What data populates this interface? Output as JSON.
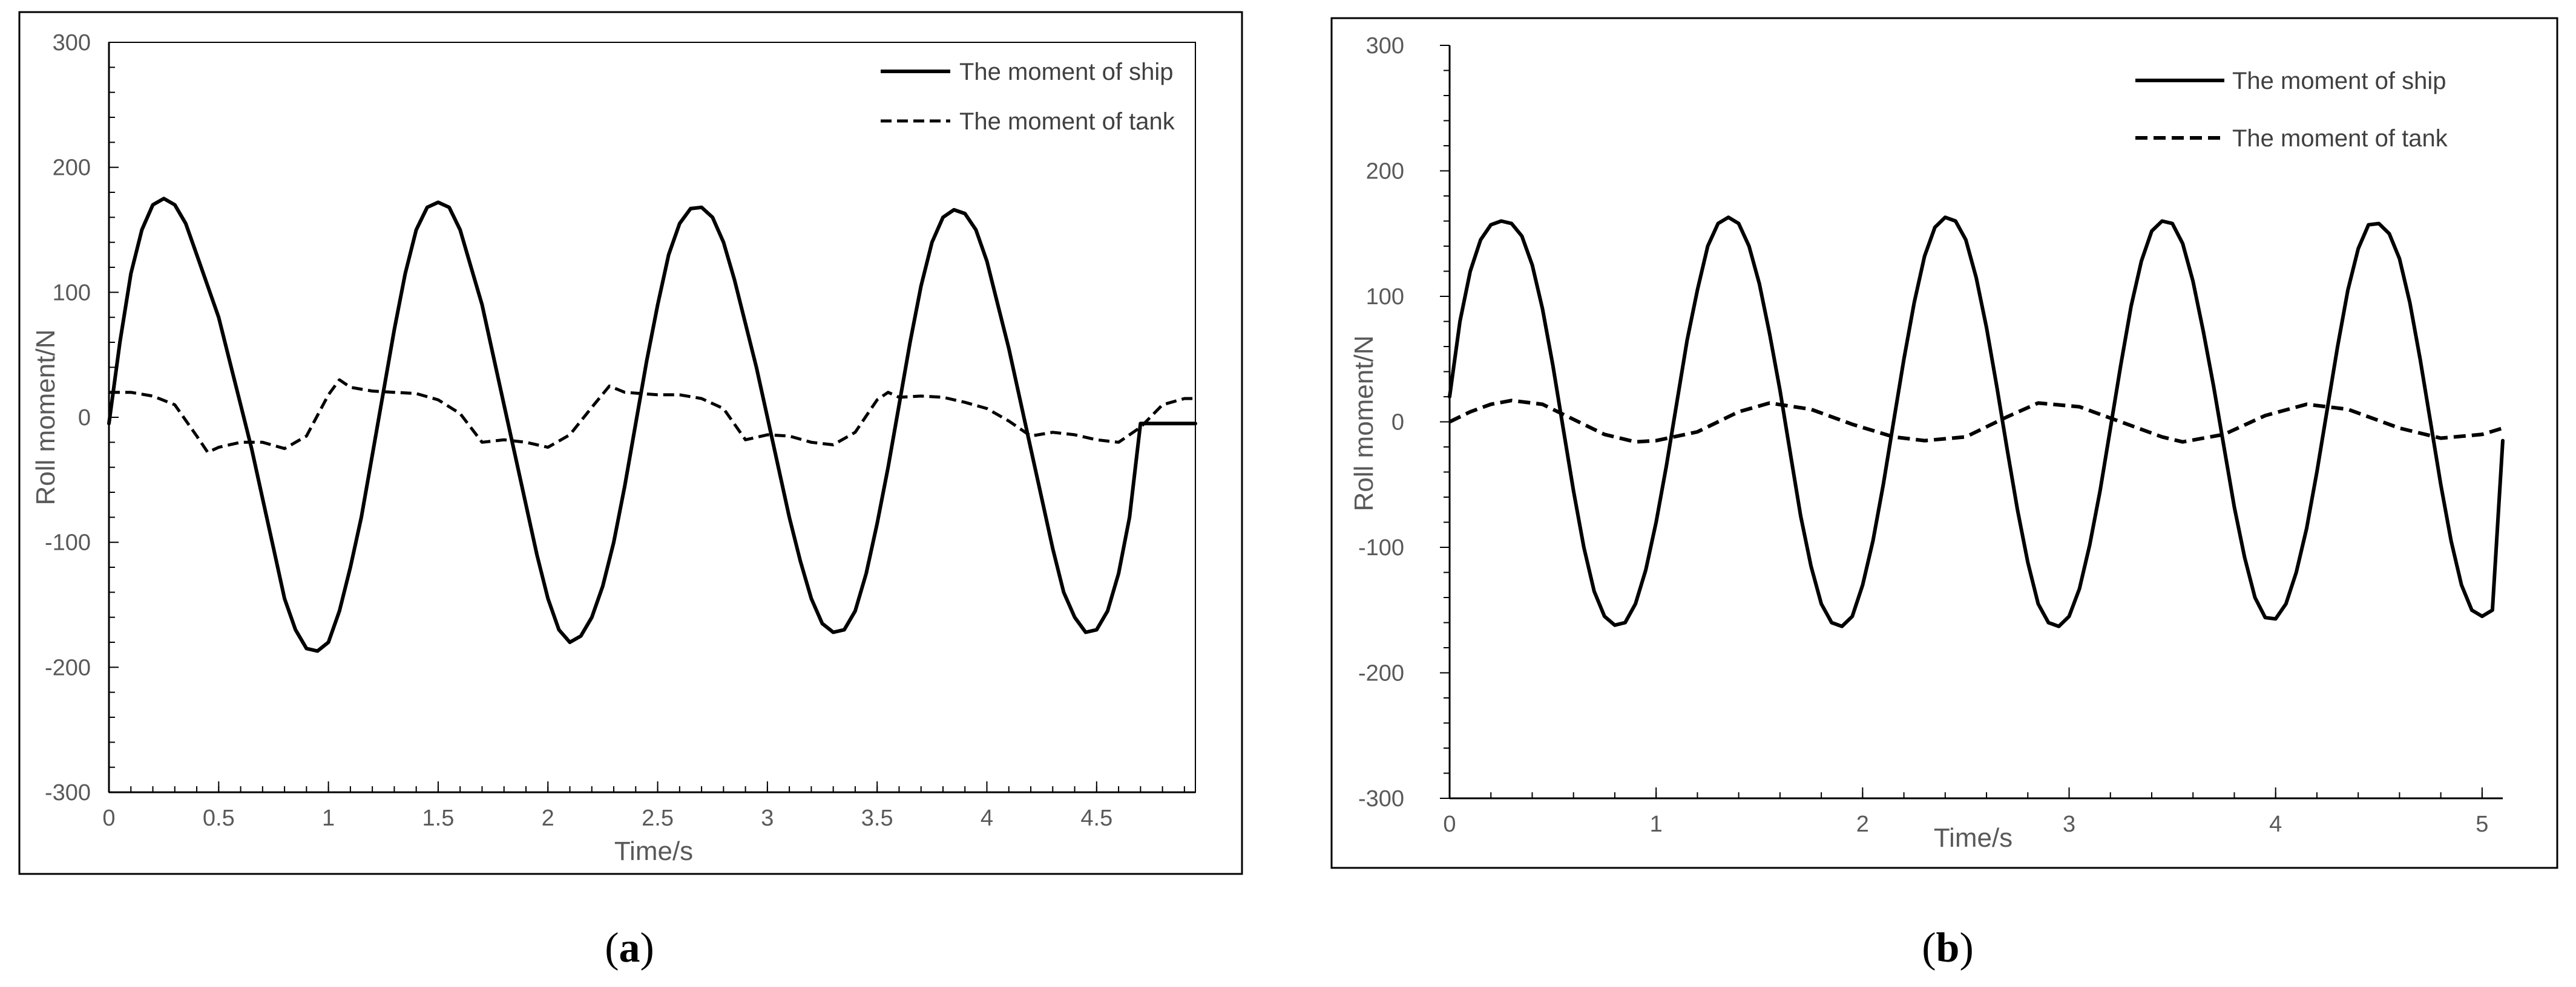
{
  "chart_data": [
    {
      "type": "line",
      "panel_label": "a",
      "xlabel": "Time/s",
      "ylabel": "Roll moment/N",
      "xlim": [
        0,
        4.95
      ],
      "ylim": [
        -300,
        300
      ],
      "xticks": [
        "0",
        "0.5",
        "1",
        "1.5",
        "2",
        "2.5",
        "3",
        "3.5",
        "4",
        "4.5"
      ],
      "yticks": [
        "300",
        "200",
        "100",
        "0",
        "-100",
        "-200",
        "-300"
      ],
      "grid": false,
      "legend_position": "top-right",
      "series": [
        {
          "name": "The moment of ship",
          "style": "solid",
          "x": [
            0,
            0.05,
            0.1,
            0.15,
            0.2,
            0.25,
            0.3,
            0.35,
            0.4,
            0.45,
            0.5,
            0.55,
            0.6,
            0.65,
            0.7,
            0.75,
            0.8,
            0.85,
            0.9,
            0.95,
            1.0,
            1.05,
            1.1,
            1.15,
            1.2,
            1.25,
            1.3,
            1.35,
            1.4,
            1.45,
            1.5,
            1.55,
            1.6,
            1.65,
            1.7,
            1.75,
            1.8,
            1.85,
            1.9,
            1.95,
            2.0,
            2.05,
            2.1,
            2.15,
            2.2,
            2.25,
            2.3,
            2.35,
            2.4,
            2.45,
            2.5,
            2.55,
            2.6,
            2.65,
            2.7,
            2.75,
            2.8,
            2.85,
            2.9,
            2.95,
            3.0,
            3.05,
            3.1,
            3.15,
            3.2,
            3.25,
            3.3,
            3.35,
            3.4,
            3.45,
            3.5,
            3.55,
            3.6,
            3.65,
            3.7,
            3.75,
            3.8,
            3.85,
            3.9,
            3.95,
            4.0,
            4.05,
            4.1,
            4.15,
            4.2,
            4.25,
            4.3,
            4.35,
            4.4,
            4.45,
            4.5,
            4.55,
            4.6,
            4.65,
            4.7,
            4.75,
            4.8,
            4.85,
            4.9,
            4.95
          ],
          "y": [
            -5,
            60,
            115,
            150,
            170,
            175,
            170,
            155,
            130,
            105,
            80,
            45,
            10,
            -25,
            -65,
            -105,
            -145,
            -170,
            -185,
            -187,
            -180,
            -155,
            -120,
            -80,
            -30,
            20,
            70,
            115,
            150,
            168,
            172,
            168,
            150,
            120,
            90,
            50,
            10,
            -30,
            -70,
            -110,
            -145,
            -170,
            -180,
            -175,
            -160,
            -135,
            -100,
            -55,
            -5,
            45,
            90,
            130,
            155,
            167,
            168,
            160,
            140,
            110,
            75,
            40,
            0,
            -40,
            -80,
            -115,
            -145,
            -165,
            -172,
            -170,
            -155,
            -125,
            -85,
            -40,
            10,
            60,
            105,
            140,
            160,
            166,
            163,
            150,
            125,
            90,
            55,
            15,
            -25,
            -65,
            -105,
            -140,
            -160,
            -172,
            -170,
            -155,
            -125,
            -80,
            -5,
            -5,
            -5,
            -5,
            -5,
            -5
          ]
        },
        {
          "name": "The moment of tank",
          "style": "dashed",
          "x": [
            0,
            0.1,
            0.2,
            0.3,
            0.4,
            0.45,
            0.5,
            0.6,
            0.7,
            0.8,
            0.9,
            1.0,
            1.05,
            1.1,
            1.2,
            1.3,
            1.4,
            1.5,
            1.6,
            1.7,
            1.8,
            1.9,
            2.0,
            2.1,
            2.2,
            2.28,
            2.35,
            2.5,
            2.6,
            2.7,
            2.8,
            2.9,
            3.0,
            3.1,
            3.2,
            3.3,
            3.4,
            3.5,
            3.55,
            3.6,
            3.7,
            3.8,
            3.9,
            4.0,
            4.1,
            4.2,
            4.3,
            4.4,
            4.5,
            4.6,
            4.7,
            4.8,
            4.9,
            4.95
          ],
          "y": [
            20,
            20,
            17,
            10,
            -15,
            -28,
            -24,
            -20,
            -20,
            -25,
            -15,
            18,
            30,
            24,
            21,
            20,
            19,
            14,
            3,
            -20,
            -18,
            -20,
            -24,
            -14,
            8,
            25,
            20,
            18,
            18,
            15,
            7,
            -18,
            -14,
            -15,
            -20,
            -22,
            -12,
            14,
            20,
            16,
            17,
            16,
            12,
            7,
            -3,
            -15,
            -12,
            -14,
            -18,
            -20,
            -8,
            10,
            15,
            15
          ]
        }
      ]
    },
    {
      "type": "line",
      "panel_label": "b",
      "xlabel": "Time/s",
      "ylabel": "Roll moment/N",
      "xlim": [
        0,
        5.1
      ],
      "ylim": [
        -300,
        300
      ],
      "xticks": [
        "0",
        "1",
        "2",
        "3",
        "4",
        "5"
      ],
      "yticks": [
        "300",
        "200",
        "100",
        "0",
        "-100",
        "-200",
        "-300"
      ],
      "grid": false,
      "legend_position": "top-right",
      "series": [
        {
          "name": "The moment of ship",
          "style": "solid",
          "x": [
            0,
            0.05,
            0.1,
            0.15,
            0.2,
            0.25,
            0.3,
            0.35,
            0.4,
            0.45,
            0.5,
            0.55,
            0.6,
            0.65,
            0.7,
            0.75,
            0.8,
            0.85,
            0.9,
            0.95,
            1.0,
            1.05,
            1.1,
            1.15,
            1.2,
            1.25,
            1.3,
            1.35,
            1.4,
            1.45,
            1.5,
            1.55,
            1.6,
            1.65,
            1.7,
            1.75,
            1.8,
            1.85,
            1.9,
            1.95,
            2.0,
            2.05,
            2.1,
            2.15,
            2.2,
            2.25,
            2.3,
            2.35,
            2.4,
            2.45,
            2.5,
            2.55,
            2.6,
            2.65,
            2.7,
            2.75,
            2.8,
            2.85,
            2.9,
            2.95,
            3.0,
            3.05,
            3.1,
            3.15,
            3.2,
            3.25,
            3.3,
            3.35,
            3.4,
            3.45,
            3.5,
            3.55,
            3.6,
            3.65,
            3.7,
            3.75,
            3.8,
            3.85,
            3.9,
            3.95,
            4.0,
            4.05,
            4.1,
            4.15,
            4.2,
            4.25,
            4.3,
            4.35,
            4.4,
            4.45,
            4.5,
            4.55,
            4.6,
            4.65,
            4.7,
            4.75,
            4.8,
            4.85,
            4.9,
            4.95,
            5.0,
            5.05,
            5.1
          ],
          "y": [
            20,
            80,
            120,
            145,
            157,
            160,
            158,
            148,
            125,
            90,
            45,
            -5,
            -55,
            -100,
            -135,
            -155,
            -162,
            -160,
            -145,
            -118,
            -80,
            -35,
            15,
            65,
            105,
            140,
            158,
            163,
            158,
            140,
            110,
            70,
            25,
            -25,
            -75,
            -115,
            -145,
            -160,
            -163,
            -155,
            -130,
            -95,
            -50,
            0,
            50,
            95,
            132,
            155,
            163,
            160,
            145,
            115,
            75,
            28,
            -22,
            -70,
            -112,
            -145,
            -160,
            -163,
            -155,
            -133,
            -98,
            -55,
            -5,
            45,
            92,
            128,
            152,
            160,
            158,
            142,
            112,
            72,
            28,
            -20,
            -68,
            -108,
            -140,
            -156,
            -157,
            -145,
            -120,
            -85,
            -40,
            10,
            60,
            105,
            138,
            157,
            158,
            150,
            130,
            95,
            50,
            0,
            -50,
            -95,
            -130,
            -150,
            -155,
            -150,
            -15
          ]
        },
        {
          "name": "The moment of tank",
          "style": "dashed",
          "x": [
            0,
            0.1,
            0.2,
            0.3,
            0.45,
            0.6,
            0.75,
            0.9,
            1.0,
            1.2,
            1.4,
            1.55,
            1.75,
            1.95,
            2.15,
            2.3,
            2.5,
            2.7,
            2.85,
            3.05,
            3.25,
            3.45,
            3.55,
            3.75,
            3.95,
            4.15,
            4.35,
            4.6,
            4.8,
            5.0,
            5.1
          ],
          "y": [
            0,
            8,
            14,
            17,
            14,
            2,
            -10,
            -16,
            -15,
            -8,
            8,
            15,
            10,
            -2,
            -12,
            -15,
            -12,
            4,
            15,
            12,
            0,
            -12,
            -16,
            -10,
            5,
            14,
            10,
            -5,
            -13,
            -10,
            -5
          ]
        }
      ]
    }
  ]
}
